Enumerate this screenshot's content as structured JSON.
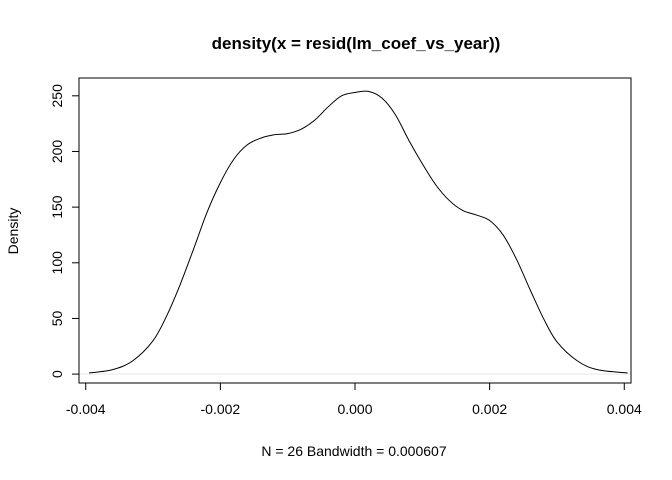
{
  "chart_data": {
    "type": "line",
    "title": "density(x = resid(lm_coef_vs_year))",
    "xlabel": "N = 26   Bandwidth = 0.000607",
    "ylabel": "Density",
    "xlim": [
      -0.0041,
      0.0041
    ],
    "ylim": [
      -8,
      266
    ],
    "x_ticks": [
      -0.004,
      -0.002,
      0.0,
      0.002,
      0.004
    ],
    "x_tick_labels": [
      "-0.004",
      "-0.002",
      "0.000",
      "0.002",
      "0.004"
    ],
    "y_ticks": [
      0,
      50,
      100,
      150,
      200,
      250
    ],
    "y_tick_labels": [
      "0",
      "50",
      "100",
      "150",
      "200",
      "250"
    ],
    "zero_line_color": "#e6e6e6",
    "series": [
      {
        "x": [
          -0.00395,
          -0.0036,
          -0.0033,
          -0.003,
          -0.0028,
          -0.0026,
          -0.0024,
          -0.0022,
          -0.002,
          -0.0018,
          -0.0016,
          -0.0014,
          -0.0012,
          -0.001,
          -0.0008,
          -0.0006,
          -0.0004,
          -0.0002,
          0.0,
          0.0002,
          0.0004,
          0.0006,
          0.0008,
          0.001,
          0.0012,
          0.0014,
          0.0016,
          0.0018,
          0.002,
          0.0022,
          0.0024,
          0.0026,
          0.0028,
          0.003,
          0.0033,
          0.0036,
          0.00405
        ],
        "y": [
          1,
          4,
          12,
          30,
          52,
          80,
          112,
          145,
          172,
          193,
          206,
          212,
          215,
          216,
          220,
          228,
          240,
          250,
          253,
          254,
          248,
          233,
          210,
          189,
          170,
          156,
          147,
          143,
          138,
          125,
          103,
          76,
          50,
          29,
          12,
          4,
          1
        ]
      }
    ]
  }
}
